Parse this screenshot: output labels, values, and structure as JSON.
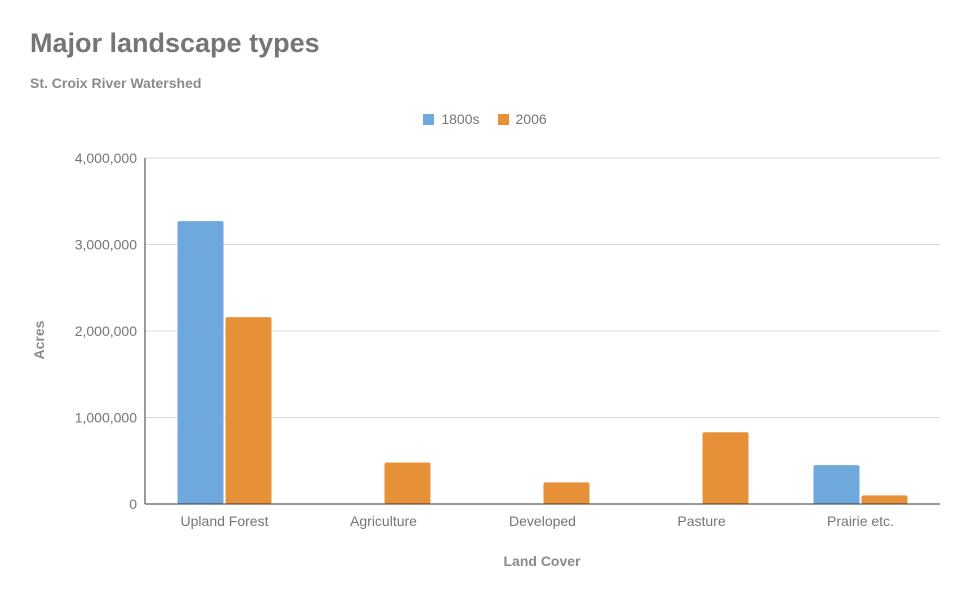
{
  "chart_data": {
    "type": "bar",
    "title": "Major landscape types",
    "subtitle": "St. Croix River Watershed",
    "xlabel": "Land Cover",
    "ylabel": "Acres",
    "categories": [
      "Upland Forest",
      "Agriculture",
      "Developed",
      "Pasture",
      "Prairie etc."
    ],
    "series": [
      {
        "name": "1800s",
        "color": "#6fa8dc",
        "values": [
          3270000,
          0,
          0,
          0,
          450000
        ]
      },
      {
        "name": "2006",
        "color": "#e69138",
        "values": [
          2160000,
          480000,
          250000,
          830000,
          100000
        ]
      }
    ],
    "ylim": [
      0,
      4000000
    ],
    "yticks": [
      "0",
      "1,000,000",
      "2,000,000",
      "3,000,000",
      "4,000,000"
    ],
    "ytick_values": [
      0,
      1000000,
      2000000,
      3000000,
      4000000
    ],
    "grid": true,
    "legend_position": "top-center"
  }
}
